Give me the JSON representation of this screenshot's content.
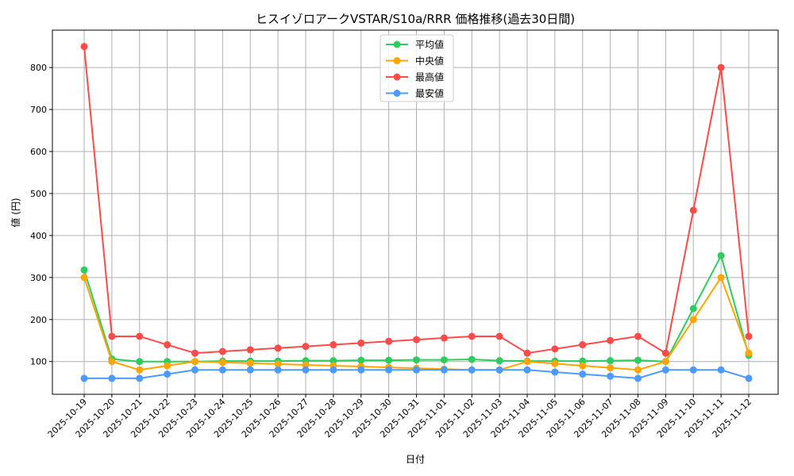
{
  "chart_data": {
    "type": "line",
    "title": "ヒスイゾロアークVSTAR/S10a/RRR 価格推移(過去30日間)",
    "xlabel": "日付",
    "ylabel": "値 (円)",
    "ylim": [
      22,
      889
    ],
    "yticks": [
      100,
      200,
      300,
      400,
      500,
      600,
      700,
      800
    ],
    "grid": true,
    "legend_position": "top-center",
    "categories": [
      "2025-10-19",
      "2025-10-20",
      "2025-10-21",
      "2025-10-22",
      "2025-10-23",
      "2025-10-24",
      "2025-10-25",
      "2025-10-26",
      "2025-10-27",
      "2025-10-28",
      "2025-10-29",
      "2025-10-30",
      "2025-10-31",
      "2025-11-01",
      "2025-11-02",
      "2025-11-03",
      "2025-11-04",
      "2025-11-05",
      "2025-11-06",
      "2025-11-07",
      "2025-11-08",
      "2025-11-09",
      "2025-11-10",
      "2025-11-11",
      "2025-11-12"
    ],
    "series": [
      {
        "name": "平均値",
        "color": "#2ecc5f",
        "values": [
          318,
          106,
          100,
          100,
          100,
          101,
          101,
          101,
          102,
          102,
          103,
          103,
          104,
          104,
          105,
          102,
          101,
          101,
          101,
          102,
          103,
          100,
          226,
          352,
          115
        ]
      },
      {
        "name": "中央値",
        "color": "#ffa500",
        "values": [
          300,
          100,
          80,
          90,
          100,
          98,
          96,
          94,
          92,
          90,
          88,
          86,
          84,
          82,
          80,
          80,
          100,
          95,
          90,
          85,
          80,
          100,
          200,
          300,
          120
        ]
      },
      {
        "name": "最高値",
        "color": "#ff4a4a",
        "values": [
          850,
          160,
          160,
          140,
          120,
          124,
          128,
          132,
          136,
          140,
          144,
          148,
          152,
          156,
          160,
          160,
          120,
          130,
          140,
          150,
          160,
          120,
          460,
          800,
          160
        ]
      },
      {
        "name": "最安値",
        "color": "#4d9aff",
        "values": [
          60,
          60,
          60,
          70,
          80,
          80,
          80,
          80,
          80,
          80,
          80,
          80,
          80,
          80,
          80,
          80,
          80,
          75,
          70,
          65,
          60,
          80,
          80,
          80,
          60
        ]
      }
    ]
  }
}
